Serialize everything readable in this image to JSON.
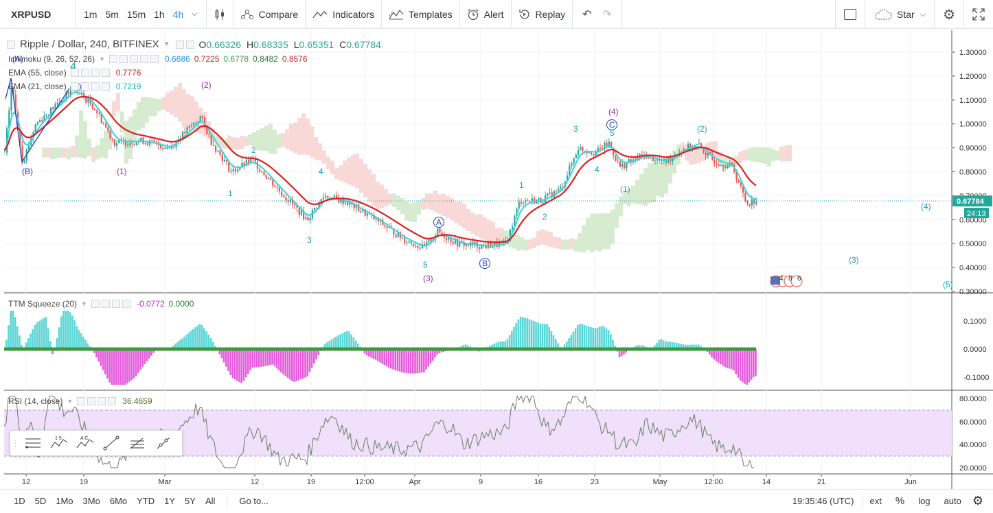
{
  "toolbar": {
    "symbol": "XRPUSD",
    "intervals": [
      "1m",
      "5m",
      "15m",
      "1h",
      "4h"
    ],
    "active_interval": "4h",
    "compare": "Compare",
    "indicators": "Indicators",
    "templates": "Templates",
    "alert": "Alert",
    "replay": "Replay",
    "star": "Star"
  },
  "main": {
    "title": "Ripple / Dollar, 240, BITFINEX",
    "o_label": "O",
    "o": "0.66326",
    "h_label": "H",
    "h": "0.68335",
    "l_label": "L",
    "l": "0.65351",
    "c_label": "C",
    "c": "0.67784",
    "price_tag": "0.67784",
    "countdown": "24:13"
  },
  "studies": {
    "ichimoku": {
      "title": "Ichimoku (9, 26, 52, 26)",
      "values": [
        "0.6686",
        "0.7225",
        "0.6778",
        "0.8482",
        "0.8576"
      ]
    },
    "ema55": {
      "title": "EMA (55, close)",
      "value": "0.7776"
    },
    "ema21": {
      "title": "EMA (21, close)",
      "value": "0.7219"
    },
    "ttm": {
      "title": "TTM Squeeze (20)",
      "v1": "-0.0772",
      "v2": "0.0000"
    },
    "rsi": {
      "title": "RSI (14, close)",
      "value": "36.4659"
    }
  },
  "axes": {
    "price_ticks": [
      "1.30000",
      "1.20000",
      "1.10000",
      "1.00000",
      "0.90000",
      "0.80000",
      "0.70000",
      "0.60000",
      "0.50000",
      "0.40000",
      "0.30000"
    ],
    "ttm_ticks": [
      "0.1000",
      "0.0000",
      "-0.1000"
    ],
    "rsi_ticks": [
      "80.0000",
      "60.0000",
      "40.0000",
      "20.0000"
    ],
    "time_ticks": [
      "12",
      "19",
      "Mar",
      "12",
      "19",
      "12:00",
      "Apr",
      "9",
      "16",
      "23",
      "May",
      "12:00",
      "14",
      "21",
      "Jun"
    ]
  },
  "wave_labels": [
    "(A)",
    "4",
    "(C)",
    "(B)",
    "(2)",
    "(1)",
    "2",
    "1",
    "4",
    "3",
    "5",
    "(3)",
    "A",
    "B",
    "1",
    "2",
    "3",
    "4",
    "5",
    "(4)",
    "C",
    "(1)",
    "(2)",
    "(4)",
    "(3)",
    "(5)"
  ],
  "badge": {
    "nums": [
      "4",
      "8",
      "6"
    ]
  },
  "bottom": {
    "ranges": [
      "1D",
      "5D",
      "1Mo",
      "3Mo",
      "6Mo",
      "YTD",
      "1Y",
      "5Y",
      "All"
    ],
    "goto": "Go to...",
    "clock": "19:35:46 (UTC)",
    "ext": "ext",
    "pct": "%",
    "log": "log",
    "auto": "auto"
  },
  "colors": {
    "up": "#26a69a",
    "down": "#ef5350",
    "ema55": "#e11d1d",
    "ema21": "#2fd7e0",
    "cloud_bull": "#cfe8c8",
    "cloud_bear": "#f7d2d0",
    "rsi_band": "#f0e0fb",
    "accent": "#2196f3",
    "ttm_pos": "#3ccfcf",
    "ttm_neg": "#e040d6"
  }
}
